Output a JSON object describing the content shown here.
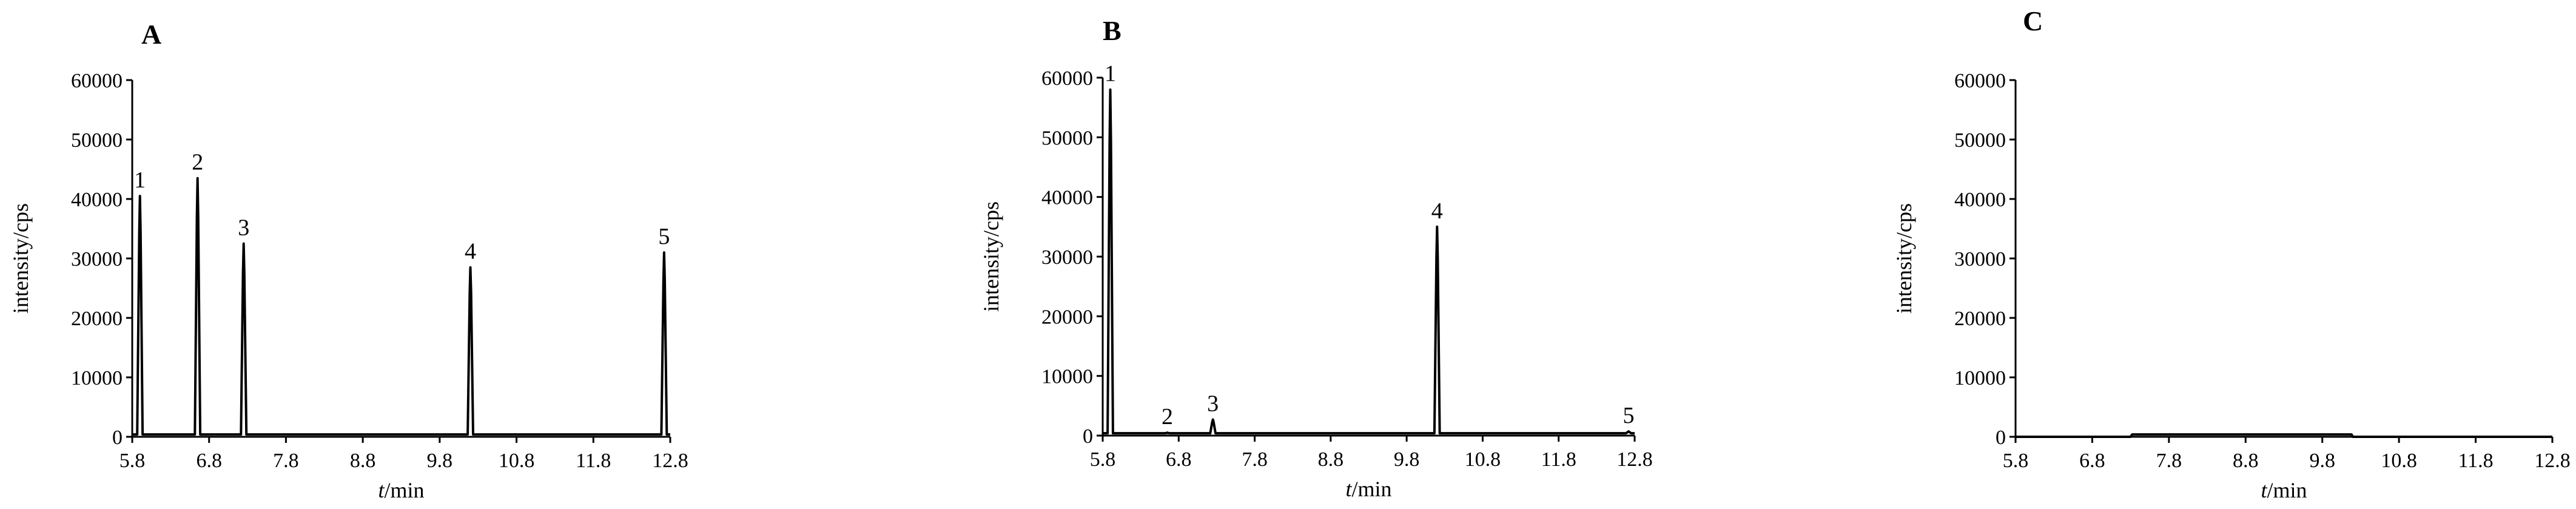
{
  "chart_data": [
    {
      "type": "line",
      "panel_label": "A",
      "xlabel_italic": "t",
      "xlabel_rest": "/min",
      "ylabel": "intensity/cps",
      "xlim": [
        5.8,
        12.8
      ],
      "ylim": [
        0,
        60000
      ],
      "x_ticks": [
        5.8,
        6.8,
        7.8,
        8.8,
        9.8,
        10.8,
        11.8,
        12.8
      ],
      "x_tick_labels": [
        "5.8",
        "6.8",
        "7.8",
        "8.8",
        "9.8",
        "10.8",
        "11.8",
        "12.8"
      ],
      "y_ticks": [
        0,
        10000,
        20000,
        30000,
        40000,
        50000,
        60000
      ],
      "y_tick_labels": [
        "0",
        "10000",
        "20000",
        "30000",
        "40000",
        "50000",
        "60000"
      ],
      "baseline": 400,
      "peaks": [
        {
          "label": "1",
          "x": 5.9,
          "y": 40500
        },
        {
          "label": "2",
          "x": 6.65,
          "y": 43500
        },
        {
          "label": "3",
          "x": 7.25,
          "y": 32500
        },
        {
          "label": "4",
          "x": 10.2,
          "y": 28500
        },
        {
          "label": "5",
          "x": 12.72,
          "y": 31000
        }
      ],
      "grid": false,
      "legend": "none"
    },
    {
      "type": "line",
      "panel_label": "B",
      "xlabel_italic": "t",
      "xlabel_rest": "/min",
      "ylabel": "intensity/cps",
      "xlim": [
        5.8,
        12.8
      ],
      "ylim": [
        0,
        60000
      ],
      "x_ticks": [
        5.8,
        6.8,
        7.8,
        8.8,
        9.8,
        10.8,
        11.8,
        12.8
      ],
      "x_tick_labels": [
        "5.8",
        "6.8",
        "7.8",
        "8.8",
        "9.8",
        "10.8",
        "11.8",
        "12.8"
      ],
      "y_ticks": [
        0,
        10000,
        20000,
        30000,
        40000,
        50000,
        60000
      ],
      "y_tick_labels": [
        "0",
        "10000",
        "20000",
        "30000",
        "40000",
        "50000",
        "60000"
      ],
      "baseline": 400,
      "peaks": [
        {
          "label": "1",
          "x": 5.9,
          "y": 58000
        },
        {
          "label": "2",
          "x": 6.65,
          "y": 500
        },
        {
          "label": "3",
          "x": 7.25,
          "y": 2700
        },
        {
          "label": "4",
          "x": 10.2,
          "y": 35000
        },
        {
          "label": "5",
          "x": 12.72,
          "y": 700
        }
      ],
      "grid": false,
      "legend": "none"
    },
    {
      "type": "line",
      "panel_label": "C",
      "xlabel_italic": "t",
      "xlabel_rest": "/min",
      "ylabel": "intensity/cps",
      "xlim": [
        5.8,
        12.8
      ],
      "ylim": [
        0,
        60000
      ],
      "x_ticks": [
        5.8,
        6.8,
        7.8,
        8.8,
        9.8,
        10.8,
        11.8,
        12.8
      ],
      "x_tick_labels": [
        "5.8",
        "6.8",
        "7.8",
        "8.8",
        "9.8",
        "10.8",
        "11.8",
        "12.8"
      ],
      "y_ticks": [
        0,
        10000,
        20000,
        30000,
        40000,
        50000,
        60000
      ],
      "y_tick_labels": [
        "0",
        "10000",
        "20000",
        "30000",
        "40000",
        "50000",
        "60000"
      ],
      "baseline": 0,
      "elevated_baseline": {
        "x_start": 7.3,
        "x_end": 10.2,
        "y": 400
      },
      "peaks": [],
      "grid": false,
      "legend": "none"
    }
  ]
}
